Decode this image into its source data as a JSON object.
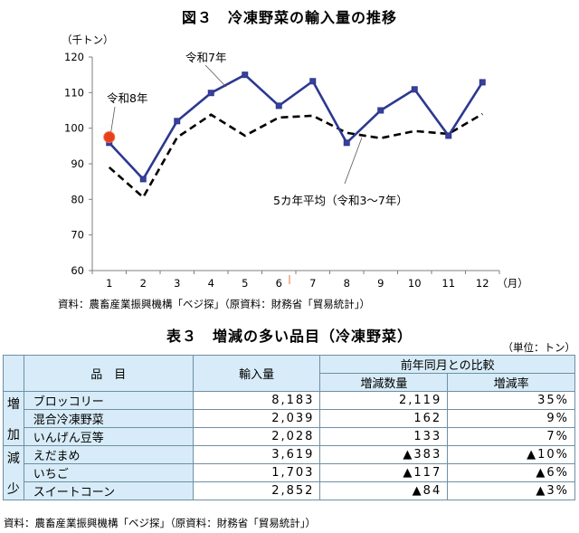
{
  "figure": {
    "title": "図３　冷凍野菜の輸入量の推移",
    "source": "資料：農畜産業振興機構「ベジ探」（原資料：財務省「貿易統計」）"
  },
  "chart_data": {
    "type": "line",
    "title": "図３　冷凍野菜の輸入量の推移",
    "ylabel": "（千トン）",
    "xlabel": "（月）",
    "ylim": [
      60,
      120
    ],
    "yticks": [
      60,
      70,
      80,
      90,
      100,
      110,
      120
    ],
    "categories": [
      "1",
      "2",
      "3",
      "4",
      "5",
      "6",
      "7",
      "8",
      "9",
      "10",
      "11",
      "12"
    ],
    "grid": false,
    "series": [
      {
        "name": "令和7年",
        "style": "solid-marker",
        "color": "#2b3990",
        "values": [
          95.9,
          85.7,
          102.0,
          109.9,
          115.0,
          106.3,
          113.2,
          95.9,
          105.0,
          110.9,
          97.9,
          112.9
        ]
      },
      {
        "name": "5カ年平均（令和3～7年）",
        "style": "dashed",
        "color": "#000000",
        "values": [
          89.0,
          80.6,
          97.4,
          103.8,
          97.9,
          103.0,
          103.5,
          98.7,
          97.2,
          99.2,
          98.4,
          104.0
        ]
      },
      {
        "name": "令和8年",
        "style": "dot",
        "color": "#e8401c",
        "values": [
          97.5
        ]
      }
    ],
    "annotations": [
      "令和8年",
      "令和7年",
      "5カ年平均（令和3～7年）"
    ]
  },
  "table": {
    "title": "表３　増減の多い品目（冷凍野菜）",
    "unit": "（単位：トン）",
    "headers": {
      "item": "品　目",
      "import": "輸入量",
      "compare": "前年同月との比較",
      "change": "増減数量",
      "rate": "増減率"
    },
    "groups": {
      "increase": [
        "増",
        "加"
      ],
      "decrease": [
        "減",
        "少"
      ]
    },
    "rows": [
      {
        "name": "ブロッコリー",
        "import": "8,183",
        "change": "2,119",
        "rate": "35%"
      },
      {
        "name": "混合冷凍野菜",
        "import": "2,039",
        "change": "162",
        "rate": "9%"
      },
      {
        "name": "いんげん豆等",
        "import": "2,028",
        "change": "133",
        "rate": "7%"
      },
      {
        "name": "えだまめ",
        "import": "3,619",
        "change": "▲383",
        "rate": "▲10%"
      },
      {
        "name": "いちご",
        "import": "1,703",
        "change": "▲117",
        "rate": "▲6%"
      },
      {
        "name": "スイートコーン",
        "import": "2,852",
        "change": "▲84",
        "rate": "▲3%"
      }
    ],
    "source": "資料：農畜産業振興機構「ベジ探」（原資料：財務省「貿易統計」）"
  }
}
